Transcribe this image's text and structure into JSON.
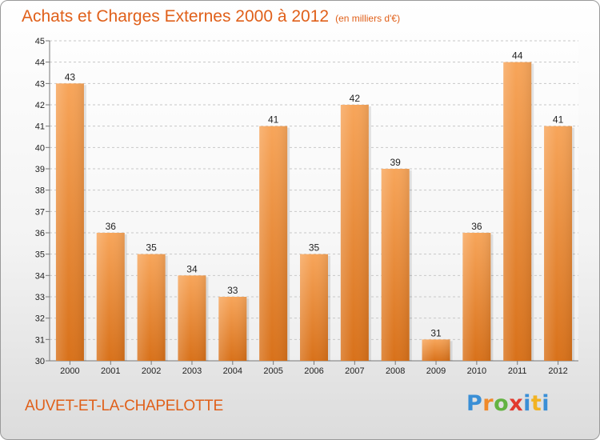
{
  "header": {
    "title": "Achats et Charges Externes 2000 à 2012",
    "unit": "(en milliers d'€)"
  },
  "footer": {
    "city": "AUVET-ET-LA-CHAPELOTTE",
    "logo_letters": [
      "P",
      "r",
      "o",
      "x",
      "i",
      "t",
      "i"
    ],
    "logo_colors": [
      "#3a8fd6",
      "#f08a2a",
      "#63b342",
      "#e23a2e",
      "#3a8fd6",
      "#f2b322",
      "#3a8fd6"
    ]
  },
  "chart_data": {
    "type": "bar",
    "categories": [
      "2000",
      "2001",
      "2002",
      "2003",
      "2004",
      "2005",
      "2006",
      "2007",
      "2008",
      "2009",
      "2010",
      "2011",
      "2012"
    ],
    "values": [
      43,
      36,
      35,
      34,
      33,
      41,
      35,
      42,
      39,
      31,
      36,
      44,
      41
    ],
    "title": "Achats et Charges Externes 2000 à 2012",
    "subtitle": "(en milliers d'€)",
    "ylim": [
      30,
      45
    ],
    "yticks": [
      30,
      31,
      32,
      33,
      34,
      35,
      36,
      37,
      38,
      39,
      40,
      41,
      42,
      43,
      44,
      45
    ],
    "grid": true,
    "bar_color": "#f29a45"
  }
}
